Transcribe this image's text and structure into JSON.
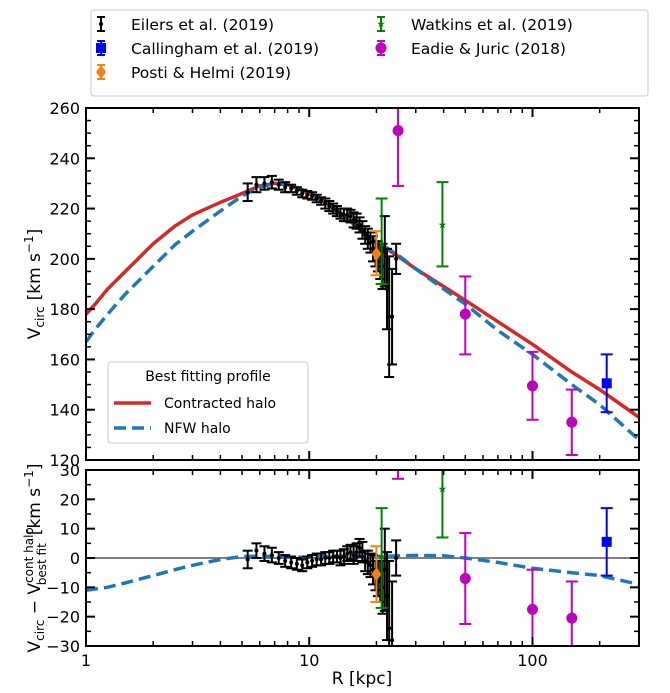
{
  "chart_data": {
    "type": "scatter",
    "xscale": "log",
    "xlabel": "R [kpc]",
    "xlim": [
      1,
      300
    ],
    "x_ticks": [
      1,
      10,
      100
    ],
    "x_tick_labels": [
      "1",
      "10",
      "100"
    ],
    "panels": [
      {
        "id": "top",
        "ylabel_main": "V",
        "ylabel_sub": "circ",
        "ylabel_units": "[km s",
        "ylabel_exp": "−1",
        "ylabel_close": "]",
        "ylim": [
          120,
          260
        ],
        "y_ticks": [
          120,
          140,
          160,
          180,
          200,
          220,
          240,
          260
        ],
        "y_tick_labels": [
          "120",
          "140",
          "160",
          "180",
          "200",
          "220",
          "240",
          "260"
        ],
        "curves": [
          {
            "name": "Contracted halo",
            "style": "solid",
            "color": "#d62728",
            "x": [
              1,
              1.1,
              1.25,
              1.5,
              2,
              2.5,
              3,
              4,
              5,
              6,
              7,
              8,
              10,
              12,
              15,
              18,
              20,
              25,
              30,
              40,
              50,
              70,
              100,
              150,
              200,
              300
            ],
            "y": [
              178,
              182,
              188,
              195,
              206,
              213,
              217.5,
              222.5,
              226,
              229,
              230,
              229.5,
              226,
              222,
              215.5,
              209.5,
              206.5,
              201,
              196,
              189,
              183.5,
              175,
              166,
              155,
              148,
              137
            ]
          },
          {
            "name": "NFW halo",
            "style": "dashed",
            "color": "#1f77b4",
            "x": [
              1,
              1.1,
              1.25,
              1.5,
              2,
              2.5,
              3,
              4,
              5,
              6,
              7,
              8,
              10,
              12,
              15,
              18,
              20,
              25,
              30,
              40,
              50,
              70,
              100,
              150,
              200,
              300
            ],
            "y": [
              167,
              172,
              178,
              186,
              197,
              205.5,
              211,
              219,
              225,
              228.5,
              230,
              229.5,
              226.5,
              222.5,
              216,
              210,
              207,
              201.5,
              196,
              188,
              182,
              171.5,
              162,
              150,
              142,
              128
            ]
          }
        ]
      },
      {
        "id": "bottom",
        "ylabel_main": "V",
        "ylabel_sub": "circ",
        "ylabel_mid": " − V",
        "ylabel_sup2": "cont halo",
        "ylabel_sub2": "best fit",
        "ylabel_units": "[km s",
        "ylabel_exp": "−1",
        "ylabel_close": "]",
        "ylim": [
          -30,
          30
        ],
        "y_ticks": [
          -30,
          -20,
          -10,
          0,
          10,
          20,
          30
        ],
        "y_tick_labels": [
          "−30",
          "−20",
          "−10",
          "0",
          "10",
          "20",
          "30"
        ],
        "zero_line_color": "#808080",
        "curves": [
          {
            "name": "NFW halo",
            "style": "dashed",
            "color": "#1f77b4",
            "x": [
              1,
              1.25,
              1.5,
              2,
              2.5,
              3,
              4,
              5,
              6,
              7,
              8,
              10,
              12,
              15,
              20,
              25,
              30,
              40,
              50,
              70,
              100,
              150,
              200,
              300
            ],
            "y": [
              -11,
              -10,
              -8.5,
              -6,
              -4,
              -2.5,
              -0.5,
              0.5,
              0.6,
              0.4,
              0.2,
              0.3,
              0.5,
              0.6,
              0.5,
              0.7,
              0.9,
              0.8,
              0,
              -1.5,
              -3.5,
              -5,
              -6,
              -9
            ]
          }
        ]
      }
    ],
    "datasets": [
      {
        "name": "Eilers et al. (2019)",
        "color": "#000000",
        "marker": "dot",
        "points": [
          {
            "x": 5.3,
            "y": 226.5,
            "err": 3.5,
            "res": -0.5,
            "rerr": 3
          },
          {
            "x": 5.8,
            "y": 229.5,
            "err": 3,
            "res": 2.5,
            "rerr": 2.5
          },
          {
            "x": 6.3,
            "y": 230,
            "err": 2.5,
            "res": 1.5,
            "rerr": 2.5
          },
          {
            "x": 6.8,
            "y": 230.5,
            "err": 2.5,
            "res": 1,
            "rerr": 2.5
          },
          {
            "x": 7.3,
            "y": 229.5,
            "err": 2,
            "res": 0,
            "rerr": 2
          },
          {
            "x": 7.8,
            "y": 228.5,
            "err": 2,
            "res": -1,
            "rerr": 2
          },
          {
            "x": 8.3,
            "y": 228,
            "err": 1.5,
            "res": -1.5,
            "rerr": 2
          },
          {
            "x": 8.8,
            "y": 227,
            "err": 1.5,
            "res": -2,
            "rerr": 2
          },
          {
            "x": 9.3,
            "y": 226,
            "err": 1.5,
            "res": -2.5,
            "rerr": 2
          },
          {
            "x": 9.8,
            "y": 225.5,
            "err": 1.5,
            "res": -1.5,
            "rerr": 2
          },
          {
            "x": 10.3,
            "y": 225,
            "err": 1.5,
            "res": -1,
            "rerr": 2
          },
          {
            "x": 10.8,
            "y": 224,
            "err": 1.5,
            "res": -0.5,
            "rerr": 2
          },
          {
            "x": 11.3,
            "y": 223,
            "err": 1.5,
            "res": -0.5,
            "rerr": 2
          },
          {
            "x": 11.8,
            "y": 222,
            "err": 2,
            "res": 0,
            "rerr": 2
          },
          {
            "x": 12.3,
            "y": 221,
            "err": 2,
            "res": 0,
            "rerr": 2
          },
          {
            "x": 12.8,
            "y": 220,
            "err": 2,
            "res": 0.5,
            "rerr": 2
          },
          {
            "x": 13.3,
            "y": 219,
            "err": 2,
            "res": 0.5,
            "rerr": 2
          },
          {
            "x": 13.8,
            "y": 218,
            "err": 2,
            "res": 0,
            "rerr": 2.5
          },
          {
            "x": 14.3,
            "y": 217.5,
            "err": 2.5,
            "res": 0.5,
            "rerr": 2.5
          },
          {
            "x": 14.8,
            "y": 217.5,
            "err": 2.5,
            "res": 1.5,
            "rerr": 2.5
          },
          {
            "x": 15.3,
            "y": 217,
            "err": 2.5,
            "res": 2,
            "rerr": 2.5
          },
          {
            "x": 15.8,
            "y": 215.5,
            "err": 3,
            "res": 1,
            "rerr": 3
          },
          {
            "x": 16.3,
            "y": 215,
            "err": 3,
            "res": 2,
            "rerr": 3
          },
          {
            "x": 16.8,
            "y": 213.5,
            "err": 3,
            "res": 3.5,
            "rerr": 3
          },
          {
            "x": 17.3,
            "y": 211.5,
            "err": 3.5,
            "res": 2,
            "rerr": 3.5
          },
          {
            "x": 17.8,
            "y": 209.5,
            "err": 3.5,
            "res": -1,
            "rerr": 3.5
          },
          {
            "x": 18.3,
            "y": 208,
            "err": 4,
            "res": -1.5,
            "rerr": 4
          },
          {
            "x": 18.8,
            "y": 206.5,
            "err": 4,
            "res": -2.5,
            "rerr": 4
          },
          {
            "x": 19.3,
            "y": 204,
            "err": 5,
            "res": -4,
            "rerr": 5
          },
          {
            "x": 19.8,
            "y": 202,
            "err": 5,
            "res": -6,
            "rerr": 5
          },
          {
            "x": 20.3,
            "y": 201,
            "err": 6,
            "res": -7,
            "rerr": 6
          },
          {
            "x": 20.8,
            "y": 199,
            "err": 7,
            "res": -8,
            "rerr": 7
          },
          {
            "x": 21.3,
            "y": 197,
            "err": 9,
            "res": -10,
            "rerr": 9
          },
          {
            "x": 21.8,
            "y": 203,
            "err": 14,
            "res": -4,
            "rerr": 14
          },
          {
            "x": 22.3,
            "y": 188,
            "err": 16,
            "res": -13,
            "rerr": 15
          },
          {
            "x": 22.8,
            "y": 177,
            "err": 24,
            "res": -24,
            "rerr": 23
          },
          {
            "x": 23.5,
            "y": 177,
            "err": 19,
            "res": -28,
            "rerr": 20
          },
          {
            "x": 24.5,
            "y": 200,
            "err": 6,
            "res": 0,
            "rerr": 6
          }
        ]
      },
      {
        "name": "Callingham et al. (2019)",
        "color": "#0000ff",
        "marker": "square",
        "points": [
          {
            "x": 215,
            "y": 150.5,
            "lo": 139,
            "hi": 162,
            "res": 5.5,
            "rlo": -6,
            "rhi": 17
          }
        ]
      },
      {
        "name": "Posti & Helmi (2019)",
        "color": "#ff7f0e",
        "marker": "diamond",
        "points": [
          {
            "x": 20,
            "y": 202,
            "lo": 193.5,
            "hi": 211,
            "res": -5.5,
            "rlo": -15,
            "rhi": 4
          }
        ]
      },
      {
        "name": "Watkins et al. (2019)",
        "color": "#008000",
        "marker": "star",
        "points": [
          {
            "x": 21.1,
            "y": 206,
            "lo": 190,
            "hi": 224,
            "res": 0.5,
            "rlo": -17,
            "rhi": 17
          },
          {
            "x": 39.5,
            "y": 213.5,
            "lo": 197,
            "hi": 230.5,
            "res": 23.5,
            "rlo": 7,
            "rhi": 40
          }
        ]
      },
      {
        "name": "Eadie & Juric (2018)",
        "color": "#bf00bf",
        "marker": "circle",
        "points": [
          {
            "x": 25,
            "y": 251,
            "lo": 229,
            "hi": 275,
            "res": 50,
            "rlo": 27,
            "rhi": 72
          },
          {
            "x": 50,
            "y": 178,
            "lo": 162,
            "hi": 193,
            "res": -7,
            "rlo": -22.5,
            "rhi": 8.5
          },
          {
            "x": 100,
            "y": 149.5,
            "lo": 136,
            "hi": 163,
            "res": -17.5,
            "rlo": -31,
            "rhi": -4
          },
          {
            "x": 150,
            "y": 135,
            "lo": 122,
            "hi": 148,
            "res": -20.5,
            "rlo": -33,
            "rhi": -8
          }
        ]
      }
    ],
    "legend_top": {
      "placement": "above",
      "entries": [
        {
          "label": "Eilers et al. (2019)",
          "color": "#000000",
          "marker": "dot"
        },
        {
          "label": "Callingham et al. (2019)",
          "color": "#0000ff",
          "marker": "square"
        },
        {
          "label": "Posti & Helmi (2019)",
          "color": "#ff7f0e",
          "marker": "diamond"
        },
        {
          "label": "Watkins et al. (2019)",
          "color": "#008000",
          "marker": "star"
        },
        {
          "label": "Eadie & Juric (2018)",
          "color": "#bf00bf",
          "marker": "circle"
        }
      ]
    },
    "legend_profile": {
      "placement": "lower-left",
      "title": "Best fitting profile",
      "entries": [
        {
          "label": "Contracted halo",
          "color": "#d62728",
          "style": "solid"
        },
        {
          "label": "NFW halo",
          "color": "#1f77b4",
          "style": "dashed"
        }
      ]
    }
  }
}
